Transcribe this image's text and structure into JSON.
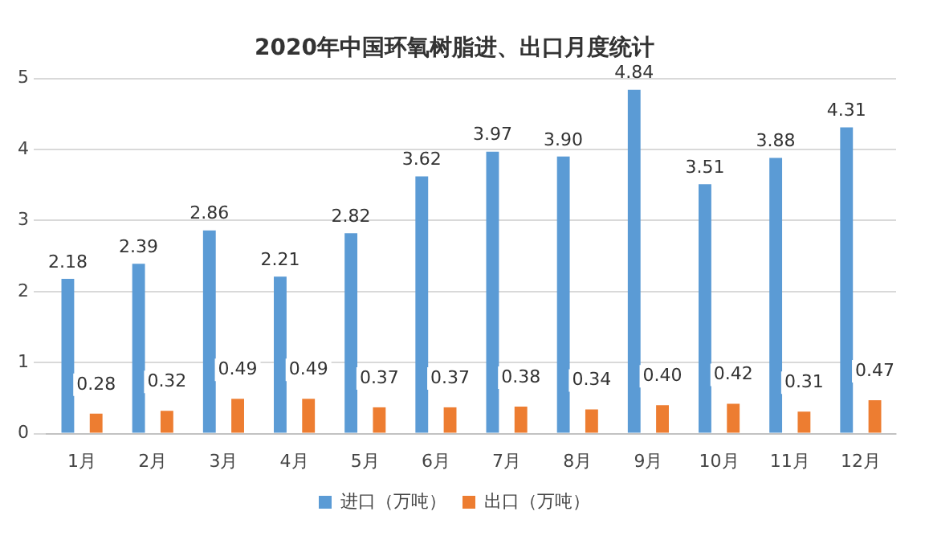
{
  "chart_data": {
    "type": "bar",
    "title": "2020年中国环氧树脂进、出口月度统计",
    "categories": [
      "1月",
      "2月",
      "3月",
      "4月",
      "5月",
      "6月",
      "7月",
      "8月",
      "9月",
      "10月",
      "11月",
      "12月"
    ],
    "series": [
      {
        "name": "进口（万吨）",
        "color": "#5b9bd5",
        "values": [
          2.18,
          2.39,
          2.86,
          2.21,
          2.82,
          3.62,
          3.97,
          3.9,
          4.84,
          3.51,
          3.88,
          4.31
        ],
        "value_labels": [
          "2.18",
          "2.39",
          "2.86",
          "2.21",
          "2.82",
          "3.62",
          "3.97",
          "3.90",
          "4.84",
          "3.51",
          "3.88",
          "4.31"
        ]
      },
      {
        "name": "出口（万吨）",
        "color": "#ed7d31",
        "values": [
          0.28,
          0.32,
          0.49,
          0.49,
          0.37,
          0.37,
          0.38,
          0.34,
          0.4,
          0.42,
          0.31,
          0.47
        ],
        "value_labels": [
          "0.28",
          "0.32",
          "0.49",
          "0.49",
          "0.37",
          "0.37",
          "0.38",
          "0.34",
          "0.40",
          "0.42",
          "0.31",
          "0.47"
        ]
      }
    ],
    "ylim": [
      0,
      5
    ],
    "yticks": [
      0,
      1,
      2,
      3,
      4,
      5
    ],
    "grid": "y",
    "legend": "bottom"
  }
}
